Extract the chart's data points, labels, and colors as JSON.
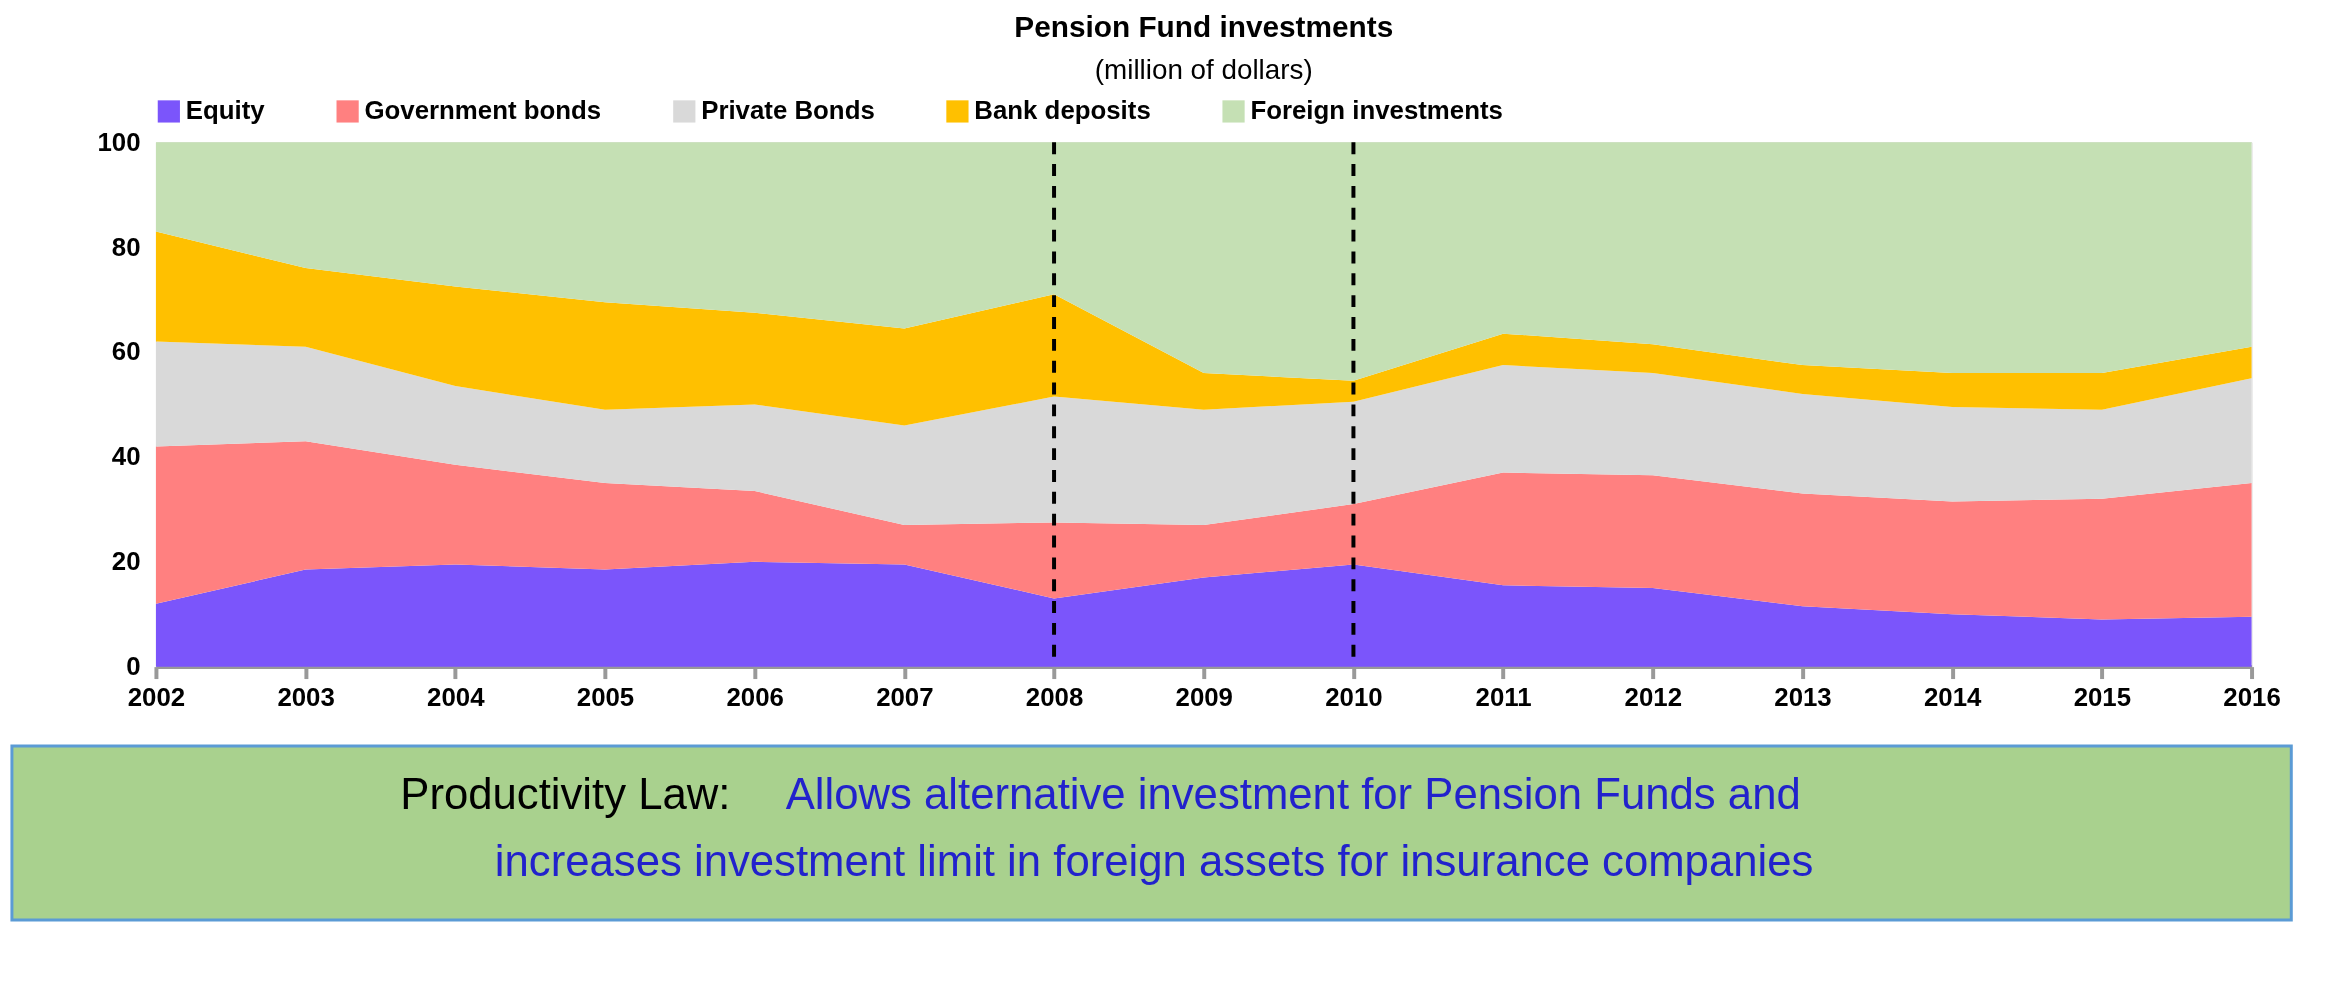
{
  "chart_data": {
    "type": "area",
    "stacked": true,
    "title": "Pension Fund investments",
    "subtitle": "(million of dollars)",
    "x": [
      2002,
      2003,
      2004,
      2005,
      2006,
      2007,
      2008,
      2009,
      2010,
      2011,
      2012,
      2013,
      2014,
      2015,
      2016
    ],
    "series": [
      {
        "name": "Equity",
        "color": "#7b55fb",
        "values": [
          12,
          18.5,
          19.5,
          18.5,
          20,
          19.5,
          13,
          17,
          19.5,
          15.5,
          15,
          11.5,
          10,
          9,
          9.5
        ]
      },
      {
        "name": "Government bonds",
        "color": "#ff8080",
        "values": [
          30,
          24.5,
          19,
          16.5,
          13.5,
          7.5,
          14.5,
          10,
          11.5,
          21.5,
          21.5,
          21.5,
          21.5,
          23,
          25.5
        ]
      },
      {
        "name": "Private Bonds",
        "color": "#d9d9d9",
        "values": [
          20,
          18,
          15,
          14,
          16.5,
          19,
          24,
          22,
          19.5,
          20.5,
          19.5,
          19,
          18,
          17,
          20
        ]
      },
      {
        "name": "Bank deposits",
        "color": "#ffc000",
        "values": [
          21,
          15,
          19,
          20.5,
          17.5,
          18.5,
          19.5,
          7,
          4,
          6,
          5.5,
          5.5,
          6.5,
          7,
          6
        ]
      },
      {
        "name": "Foreign investments",
        "color": "#c5e0b4",
        "values": [
          17,
          24,
          27.5,
          30.5,
          32.5,
          35.5,
          29,
          44,
          45.5,
          36.5,
          38.5,
          42.5,
          44,
          44,
          39
        ]
      }
    ],
    "xlim": [
      2002,
      2016
    ],
    "xticks": [
      2002,
      2003,
      2004,
      2005,
      2006,
      2007,
      2008,
      2009,
      2010,
      2011,
      2012,
      2013,
      2014,
      2015,
      2016
    ],
    "ylim": [
      0,
      100
    ],
    "yticks": [
      0,
      20,
      40,
      60,
      80,
      100
    ],
    "grid": false,
    "legend": "top",
    "ref_lines": [
      {
        "axis": "x",
        "value": 2008,
        "color": "#000000",
        "line_style": "dashed"
      },
      {
        "axis": "x",
        "value": 2010,
        "color": "#000000",
        "line_style": "dashed"
      }
    ],
    "annotations": [
      "Productivity Law:",
      "Allows alternative investment for Pension Funds and increases investment limit in foreign assets for insurance companies"
    ]
  }
}
